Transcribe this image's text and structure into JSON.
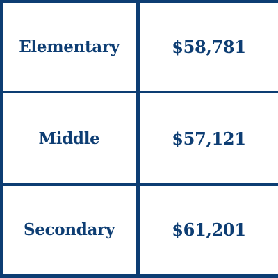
{
  "table": {
    "rows": [
      {
        "level": "Elementary",
        "salary": "$58,781"
      },
      {
        "level": "Middle",
        "salary": "$57,121"
      },
      {
        "level": "Secondary",
        "salary": "$61,201"
      }
    ]
  },
  "colors": {
    "border": "#0d3d73",
    "text": "#0d3d73",
    "cell_background": "#ffffff"
  }
}
